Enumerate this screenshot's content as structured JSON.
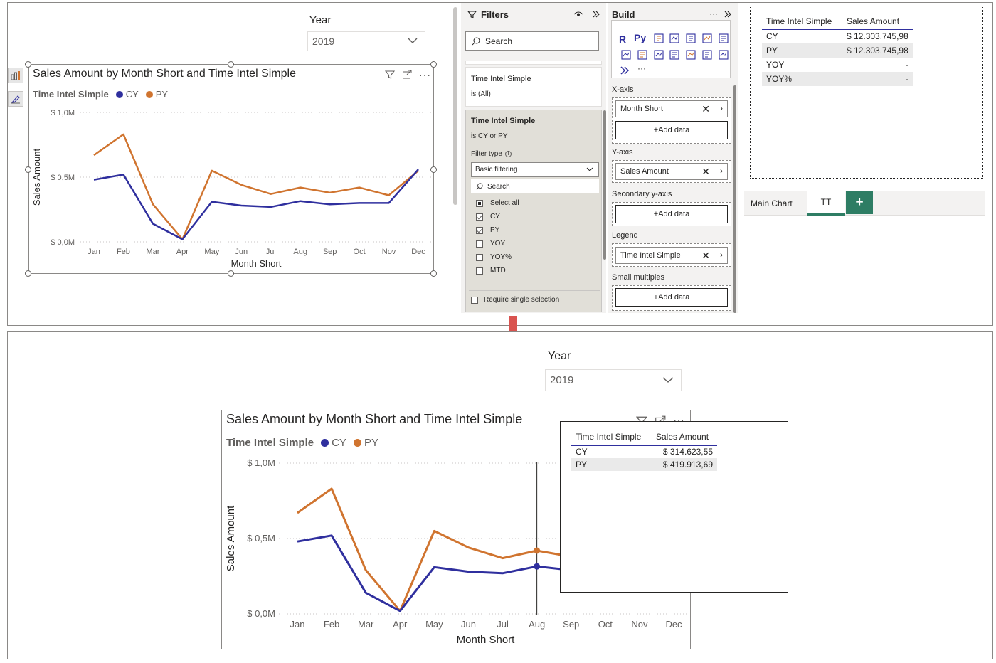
{
  "top": {
    "slicer": {
      "title": "Year",
      "value": "2019"
    },
    "chart": {
      "title": "Sales Amount by Month Short and Time Intel Simple",
      "legend_title": "Time Intel Simple",
      "y_ticks": [
        "$ 1,0M",
        "$ 0,5M",
        "$ 0,0M"
      ],
      "ylabel": "Sales Amount",
      "xlabel": "Month Short"
    },
    "filters": {
      "header": "Filters",
      "search_placeholder": "Search",
      "card1": {
        "title": "Time Intel Simple",
        "state": "is (All)"
      },
      "card2": {
        "title": "Time Intel Simple",
        "state": "is CY or PY",
        "filter_type_label": "Filter type",
        "filter_type_value": "Basic filtering",
        "search_placeholder": "Search",
        "options": [
          {
            "label": "Select all",
            "state": "partial"
          },
          {
            "label": "CY",
            "state": "checked"
          },
          {
            "label": "PY",
            "state": "checked"
          },
          {
            "label": "YOY",
            "state": "unchecked"
          },
          {
            "label": "YOY%",
            "state": "unchecked"
          },
          {
            "label": "MTD",
            "state": "unchecked"
          }
        ],
        "require_single": "Require single selection"
      }
    },
    "build": {
      "header": "Build",
      "xaxis_label": "X-axis",
      "xaxis_field": "Month Short",
      "add_data": "+Add data",
      "yaxis_label": "Y-axis",
      "yaxis_field": "Sales Amount",
      "secondary_label": "Secondary y-axis",
      "legend_label": "Legend",
      "legend_field": "Time Intel Simple",
      "small_multiples_label": "Small multiples",
      "icon_r": "R",
      "icon_py": "Py"
    },
    "table": {
      "headers": [
        "Time Intel Simple",
        "Sales Amount"
      ],
      "rows": [
        [
          "CY",
          "$ 12.303.745,98"
        ],
        [
          "PY",
          "$ 12.303.745,98"
        ],
        [
          "YOY",
          "-"
        ],
        [
          "YOY%",
          "-"
        ]
      ]
    },
    "tabs": [
      {
        "label": "Main Chart",
        "active": false
      },
      {
        "label": "TT",
        "active": true
      }
    ],
    "add_tab": "+"
  },
  "bottom": {
    "slicer": {
      "title": "Year",
      "value": "2019"
    },
    "chart": {
      "title": "Sales Amount by Month Short and Time Intel Simple",
      "legend_title": "Time Intel Simple",
      "y_ticks": [
        "$ 1,0M",
        "$ 0,5M",
        "$ 0,0M"
      ],
      "ylabel": "Sales Amount",
      "xlabel": "Month Short"
    },
    "tooltip": {
      "headers": [
        "Time Intel Simple",
        "Sales Amount"
      ],
      "rows": [
        [
          "CY",
          "$ 314.623,55"
        ],
        [
          "PY",
          "$ 419.913,69"
        ]
      ]
    }
  },
  "colors": {
    "cy": "#2f2f9e",
    "py": "#d0742f",
    "teal": "#2e7d64"
  },
  "chart_data": {
    "type": "line",
    "categories": [
      "Jan",
      "Feb",
      "Mar",
      "Apr",
      "May",
      "Jun",
      "Jul",
      "Aug",
      "Sep",
      "Oct",
      "Nov",
      "Dec"
    ],
    "series": [
      {
        "name": "CY",
        "values": [
          0.48,
          0.52,
          0.14,
          0.02,
          0.31,
          0.28,
          0.27,
          0.315,
          0.29,
          0.3,
          0.3,
          0.56
        ]
      },
      {
        "name": "PY",
        "values": [
          0.67,
          0.83,
          0.29,
          0.02,
          0.55,
          0.44,
          0.37,
          0.42,
          0.38,
          0.42,
          0.36,
          0.55
        ]
      }
    ],
    "title": "Sales Amount by Month Short and Time Intel Simple",
    "xlabel": "Month Short",
    "ylabel": "Sales Amount",
    "ylim": [
      0,
      1.0
    ],
    "legend_position": "top-left",
    "highlight_category": "Aug"
  }
}
